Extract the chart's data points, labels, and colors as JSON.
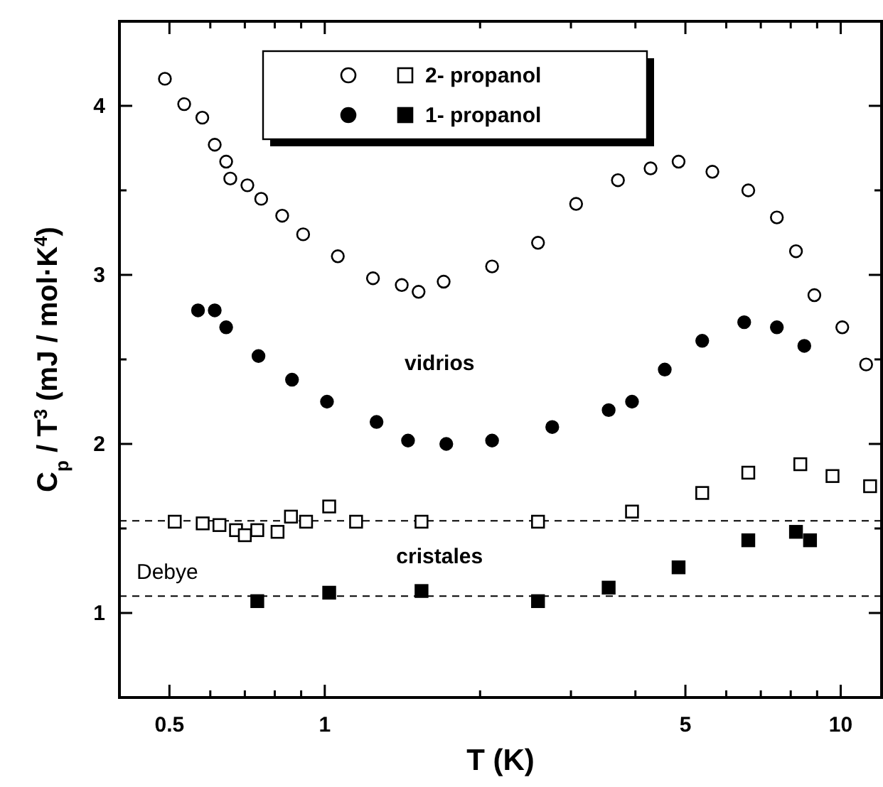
{
  "chart_data": {
    "type": "scatter",
    "xlabel": "T (K)",
    "ylabel": "C$_{p}$ / T$^{3}$ (mJ / mol·K$^{4}$)",
    "log": "x",
    "xlim": [
      0.4,
      12
    ],
    "ylim": [
      0.5,
      4.5
    ],
    "xticks": [
      0.5,
      {
        "value": 0.6,
        "label": null
      },
      {
        "value": 0.7,
        "label": null
      },
      {
        "value": 0.8,
        "label": null
      },
      {
        "value": 0.9,
        "label": null
      },
      1,
      {
        "value": 2,
        "label": null
      },
      {
        "value": 3,
        "label": null
      },
      {
        "value": 4,
        "label": null
      },
      5,
      {
        "value": 6,
        "label": null
      },
      {
        "value": 7,
        "label": null
      },
      {
        "value": 8,
        "label": null
      },
      {
        "value": 9,
        "label": null
      },
      10
    ],
    "yticks": [
      {
        "value": 0.5,
        "label": null
      },
      1,
      {
        "value": 1.5,
        "label": null
      },
      2,
      {
        "value": 2.5,
        "label": null
      },
      3,
      {
        "value": 3.5,
        "label": null
      },
      4
    ],
    "grid": false,
    "legend": "top",
    "series": [
      {
        "color": "#ffffff",
        "marker": "circle",
        "x": [
          0.49,
          0.534,
          0.579,
          0.612,
          0.644,
          0.656,
          0.708,
          0.753,
          0.827,
          0.908,
          1.06,
          1.24,
          1.41,
          1.52,
          1.7,
          2.11,
          2.59,
          3.07,
          3.7,
          4.28,
          4.85,
          5.64,
          6.62,
          7.52,
          8.19,
          8.89,
          10.07,
          11.2
        ],
        "values": [
          4.16,
          4.01,
          3.93,
          3.77,
          3.67,
          3.57,
          3.53,
          3.45,
          3.35,
          3.24,
          3.11,
          2.98,
          2.94,
          2.9,
          2.96,
          3.05,
          3.19,
          3.42,
          3.56,
          3.63,
          3.67,
          3.61,
          3.5,
          3.34,
          3.14,
          2.88,
          2.69,
          2.47
        ]
      },
      {
        "color": "#000000",
        "marker": "circle",
        "x": [
          0.568,
          0.612,
          0.644,
          0.744,
          0.864,
          1.01,
          1.26,
          1.45,
          1.72,
          2.11,
          2.76,
          3.55,
          3.94,
          4.56,
          5.39,
          6.5,
          7.52,
          8.5
        ],
        "values": [
          2.79,
          2.79,
          2.69,
          2.52,
          2.38,
          2.25,
          2.13,
          2.02,
          2.0,
          2.02,
          2.1,
          2.2,
          2.25,
          2.44,
          2.61,
          2.72,
          2.69,
          2.58
        ]
      },
      {
        "name": "2- propanol",
        "color": "#ffffff",
        "marker": "square",
        "x": [
          0.512,
          0.58,
          0.625,
          0.673,
          0.7,
          0.74,
          0.81,
          0.86,
          0.92,
          1.02,
          1.15,
          1.54,
          2.59,
          3.94,
          5.39,
          6.62,
          8.35,
          9.64,
          11.4
        ],
        "values": [
          1.54,
          1.53,
          1.52,
          1.49,
          1.46,
          1.49,
          1.48,
          1.57,
          1.54,
          1.63,
          1.54,
          1.54,
          1.54,
          1.6,
          1.71,
          1.83,
          1.88,
          1.81,
          1.75
        ]
      },
      {
        "name": "1- propanol",
        "color": "#000000",
        "marker": "square",
        "x": [
          0.74,
          1.02,
          1.54,
          2.59,
          3.55,
          4.85,
          6.62,
          8.19,
          8.72
        ],
        "values": [
          1.07,
          1.12,
          1.13,
          1.07,
          1.15,
          1.27,
          1.43,
          1.48,
          1.43
        ]
      }
    ],
    "ref_lines": [
      {
        "axis": "y",
        "value": 1.545,
        "label": null,
        "line_style": "dashed",
        "color": "#000000"
      },
      {
        "axis": "y",
        "value": 1.1,
        "label": "Debye",
        "line_style": "dashed",
        "color": "#000000"
      }
    ],
    "annotations": [
      "vidrios",
      "cristales"
    ]
  }
}
